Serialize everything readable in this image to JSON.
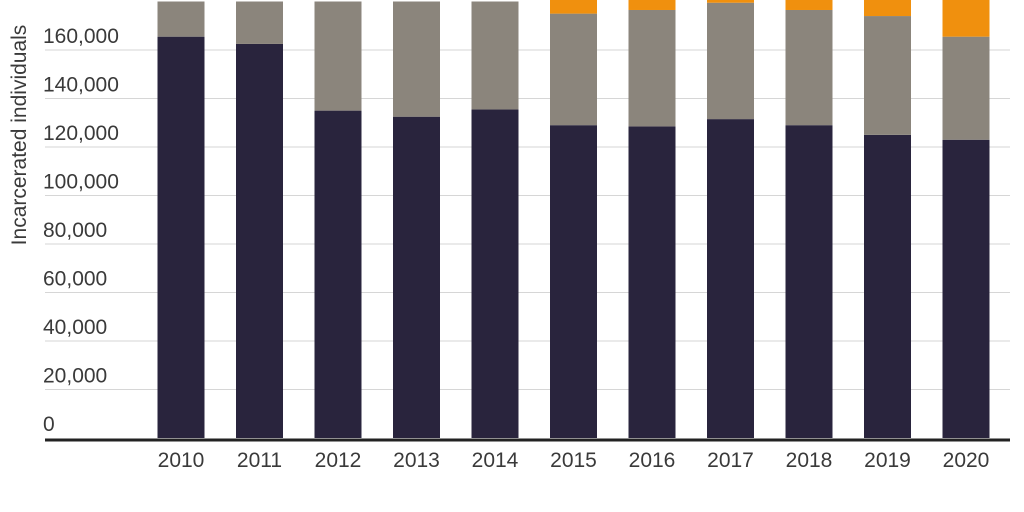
{
  "chart_data": {
    "type": "bar",
    "stacked": true,
    "ylabel": "Incarcerated individuals",
    "ylim": [
      0,
      180000
    ],
    "ytick_values": [
      0,
      20000,
      40000,
      60000,
      80000,
      100000,
      120000,
      140000,
      160000
    ],
    "ytick_labels": [
      "0",
      "20,000",
      "40,000",
      "60,000",
      "80,000",
      "100,000",
      "120,000",
      "140,000",
      "160,000"
    ],
    "categories": [
      "2010",
      "2011",
      "2012",
      "2013",
      "2014",
      "2015",
      "2016",
      "2017",
      "2018",
      "2019",
      "2020"
    ],
    "series": [
      {
        "color": "#29243d",
        "values": [
          165500,
          162500,
          135000,
          132500,
          135500,
          129000,
          128500,
          131500,
          129000,
          125000,
          123000
        ]
      },
      {
        "color": "#8b857c",
        "values": [
          14500,
          17500,
          45000,
          47500,
          44500,
          46000,
          48000,
          48000,
          47500,
          49000,
          42500
        ]
      },
      {
        "color": "#f0900e",
        "values": [
          0,
          0,
          0,
          0,
          0,
          8000,
          7000,
          5000,
          6500,
          7500,
          17000
        ]
      }
    ],
    "grid": true,
    "legend": "none"
  }
}
